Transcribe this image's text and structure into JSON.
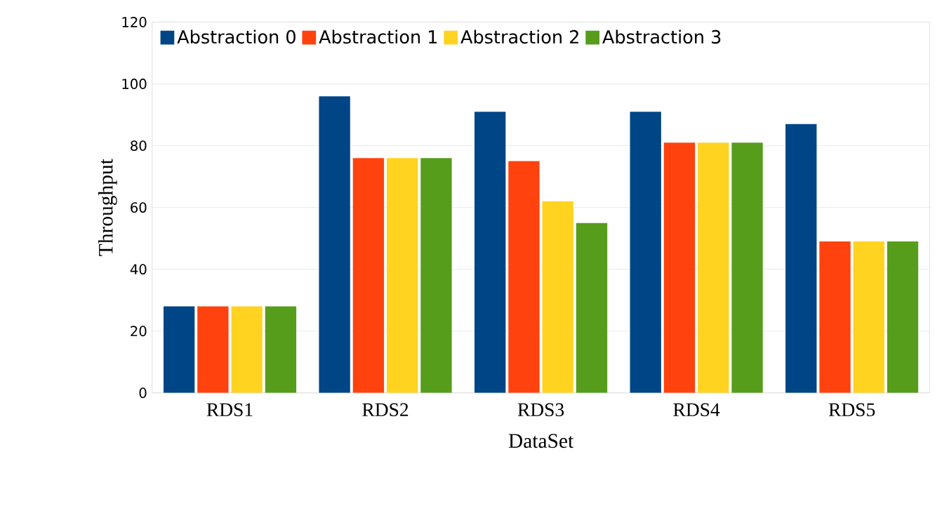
{
  "chart_data": {
    "type": "bar",
    "xlabel": "DataSet",
    "ylabel": "Throughput",
    "categories": [
      "RDS1",
      "RDS2",
      "RDS3",
      "RDS4",
      "RDS5"
    ],
    "series": [
      {
        "name": "Abstraction 0",
        "color": "#004586",
        "values": [
          28,
          96,
          91,
          91,
          87
        ]
      },
      {
        "name": "Abstraction 1",
        "color": "#ff420e",
        "values": [
          28,
          76,
          75,
          81,
          49
        ]
      },
      {
        "name": "Abstraction 2",
        "color": "#ffd320",
        "values": [
          28,
          76,
          62,
          81,
          49
        ]
      },
      {
        "name": "Abstraction 3",
        "color": "#579d1c",
        "values": [
          28,
          76,
          55,
          81,
          49
        ]
      }
    ],
    "ylim": [
      0,
      120
    ],
    "yticks": [
      0,
      20,
      40,
      60,
      80,
      100,
      120
    ],
    "grid": "y",
    "legend": "top left"
  }
}
